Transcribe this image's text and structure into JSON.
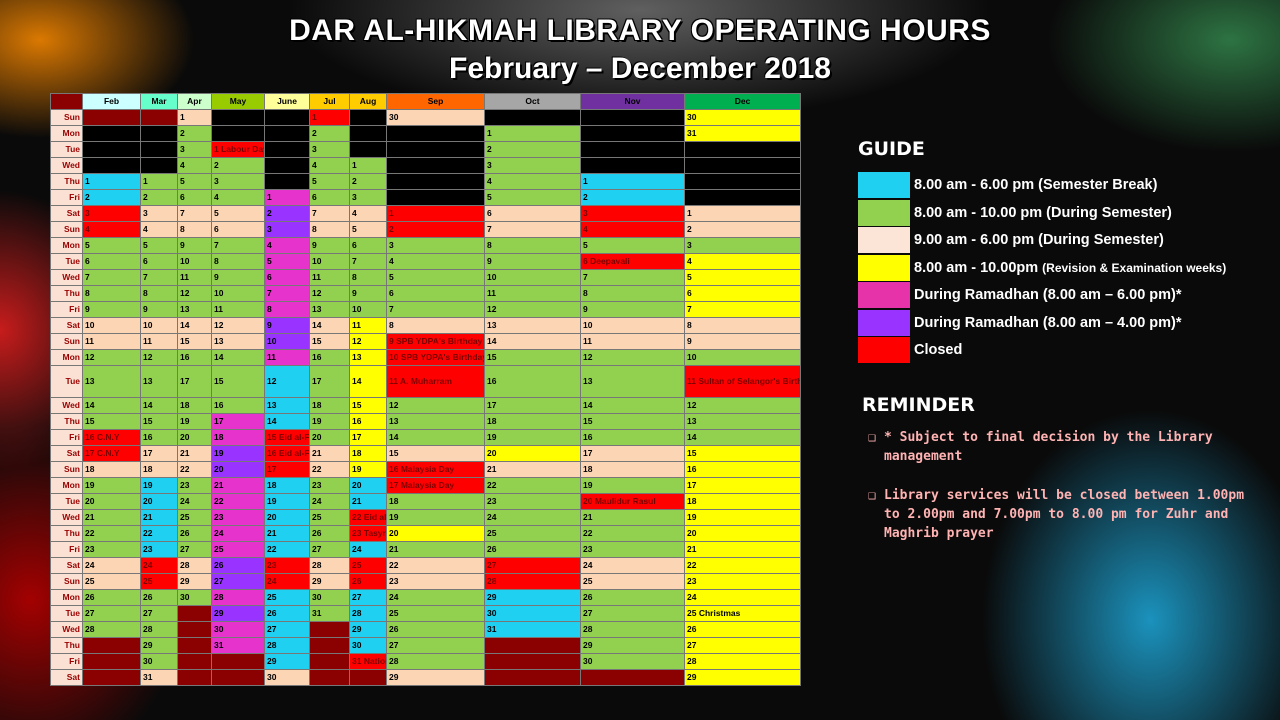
{
  "title": "DAR AL-HIKMAH LIBRARY OPERATING HOURS",
  "subtitle": "February – December 2018",
  "colors": {
    "semester_break": "#1fd0f0",
    "during_semester_long": "#92d050",
    "during_semester_short": "#fcd5b4",
    "revision_exam": "#ffff00",
    "ramadhan_6": "#e633cc",
    "ramadhan_4": "#9933ff",
    "closed": "#ff0000"
  },
  "months": [
    "Feb",
    "Mar",
    "Apr",
    "May",
    "June",
    "Jul",
    "Aug",
    "Sep",
    "Oct",
    "Nov",
    "Dec"
  ],
  "month_colors": [
    "#ccffff",
    "#66ffcc",
    "#ccffcc",
    "#99cc00",
    "#ffff99",
    "#ffcc00",
    "#ffcc00",
    "#ff6600",
    "#a6a6a6",
    "#7030a0",
    "#00b050"
  ],
  "days": [
    "Sun",
    "Mon",
    "Tue",
    "Wed",
    "Thu",
    "Fri",
    "Sat",
    "Sun",
    "Mon",
    "Tue",
    "Wed",
    "Thu",
    "Fri",
    "Sat",
    "Sun",
    "Mon",
    "Tue",
    "Wed",
    "Thu",
    "Fri",
    "Sat",
    "Sun",
    "Mon",
    "Tue",
    "Wed",
    "Thu",
    "Fri",
    "Sat",
    "Sun",
    "Mon",
    "Tue",
    "Wed",
    "Thu",
    "Fri",
    "Sat"
  ],
  "rows": [
    [
      [
        "",
        "dr"
      ],
      [
        "",
        "dr"
      ],
      [
        "1",
        "pe"
      ],
      [
        "",
        "bk"
      ],
      [
        "",
        "bk"
      ],
      [
        "1",
        "re"
      ],
      [
        "",
        "bk"
      ],
      [
        "30",
        "pe"
      ],
      [
        "",
        "bk"
      ],
      [
        "",
        "bk"
      ],
      [
        "30",
        "ye"
      ]
    ],
    [
      [
        "",
        "bk"
      ],
      [
        "",
        "bk"
      ],
      [
        "2",
        "gr"
      ],
      [
        "",
        "bk"
      ],
      [
        "",
        "bk"
      ],
      [
        "2",
        "gr"
      ],
      [
        "",
        "bk"
      ],
      [
        "",
        "bk"
      ],
      [
        "1",
        "gr"
      ],
      [
        "",
        "bk"
      ],
      [
        "31",
        "ye"
      ]
    ],
    [
      [
        "",
        "bk"
      ],
      [
        "",
        "bk"
      ],
      [
        "3",
        "gr"
      ],
      [
        "1 Labour Day",
        "re"
      ],
      [
        "",
        "bk"
      ],
      [
        "3",
        "gr"
      ],
      [
        "",
        "bk"
      ],
      [
        "",
        "bk"
      ],
      [
        "2",
        "gr"
      ],
      [
        "",
        "bk"
      ],
      [
        "",
        "bk"
      ]
    ],
    [
      [
        "",
        "bk"
      ],
      [
        "",
        "bk"
      ],
      [
        "4",
        "gr"
      ],
      [
        "2",
        "gr"
      ],
      [
        "",
        "bk"
      ],
      [
        "4",
        "gr"
      ],
      [
        "1",
        "gr"
      ],
      [
        "",
        "bk"
      ],
      [
        "3",
        "gr"
      ],
      [
        "",
        "bk"
      ],
      [
        "",
        "bk"
      ]
    ],
    [
      [
        "1",
        "cy"
      ],
      [
        "1",
        "gr"
      ],
      [
        "5",
        "gr"
      ],
      [
        "3",
        "gr"
      ],
      [
        "",
        "bk"
      ],
      [
        "5",
        "gr"
      ],
      [
        "2",
        "gr"
      ],
      [
        "",
        "bk"
      ],
      [
        "4",
        "gr"
      ],
      [
        "1",
        "cy"
      ],
      [
        "",
        "bk"
      ]
    ],
    [
      [
        "2",
        "cy"
      ],
      [
        "2",
        "gr"
      ],
      [
        "6",
        "gr"
      ],
      [
        "4",
        "gr"
      ],
      [
        "1",
        "mg"
      ],
      [
        "6",
        "gr"
      ],
      [
        "3",
        "gr"
      ],
      [
        "",
        "bk"
      ],
      [
        "5",
        "gr"
      ],
      [
        "2",
        "cy"
      ],
      [
        "",
        "bk"
      ]
    ],
    [
      [
        "3",
        "re"
      ],
      [
        "3",
        "pe"
      ],
      [
        "7",
        "pe"
      ],
      [
        "5",
        "pe"
      ],
      [
        "2",
        "pu"
      ],
      [
        "7",
        "pe"
      ],
      [
        "4",
        "pe"
      ],
      [
        "1",
        "re"
      ],
      [
        "6",
        "pe"
      ],
      [
        "3",
        "re"
      ],
      [
        "1",
        "pe"
      ]
    ],
    [
      [
        "4",
        "re"
      ],
      [
        "4",
        "pe"
      ],
      [
        "8",
        "pe"
      ],
      [
        "6",
        "pe"
      ],
      [
        "3",
        "pu"
      ],
      [
        "8",
        "pe"
      ],
      [
        "5",
        "pe"
      ],
      [
        "2",
        "re"
      ],
      [
        "7",
        "pe"
      ],
      [
        "4",
        "re"
      ],
      [
        "2",
        "pe"
      ]
    ],
    [
      [
        "5",
        "gr"
      ],
      [
        "5",
        "gr"
      ],
      [
        "9",
        "gr"
      ],
      [
        "7",
        "gr"
      ],
      [
        "4",
        "mg"
      ],
      [
        "9",
        "gr"
      ],
      [
        "6",
        "gr"
      ],
      [
        "3",
        "gr"
      ],
      [
        "8",
        "gr"
      ],
      [
        "5",
        "gr"
      ],
      [
        "3",
        "gr"
      ]
    ],
    [
      [
        "6",
        "gr"
      ],
      [
        "6",
        "gr"
      ],
      [
        "10",
        "gr"
      ],
      [
        "8",
        "gr"
      ],
      [
        "5",
        "mg"
      ],
      [
        "10",
        "gr"
      ],
      [
        "7",
        "gr"
      ],
      [
        "4",
        "gr"
      ],
      [
        "9",
        "gr"
      ],
      [
        "6 Deepavali",
        "re"
      ],
      [
        "4",
        "ye"
      ]
    ],
    [
      [
        "7",
        "gr"
      ],
      [
        "7",
        "gr"
      ],
      [
        "11",
        "gr"
      ],
      [
        "9",
        "gr"
      ],
      [
        "6",
        "mg"
      ],
      [
        "11",
        "gr"
      ],
      [
        "8",
        "gr"
      ],
      [
        "5",
        "gr"
      ],
      [
        "10",
        "gr"
      ],
      [
        "7",
        "gr"
      ],
      [
        "5",
        "ye"
      ]
    ],
    [
      [
        "8",
        "gr"
      ],
      [
        "8",
        "gr"
      ],
      [
        "12",
        "gr"
      ],
      [
        "10",
        "gr"
      ],
      [
        "7",
        "mg"
      ],
      [
        "12",
        "gr"
      ],
      [
        "9",
        "gr"
      ],
      [
        "6",
        "gr"
      ],
      [
        "11",
        "gr"
      ],
      [
        "8",
        "gr"
      ],
      [
        "6",
        "ye"
      ]
    ],
    [
      [
        "9",
        "gr"
      ],
      [
        "9",
        "gr"
      ],
      [
        "13",
        "gr"
      ],
      [
        "11",
        "gr"
      ],
      [
        "8",
        "mg"
      ],
      [
        "13",
        "gr"
      ],
      [
        "10",
        "gr"
      ],
      [
        "7",
        "gr"
      ],
      [
        "12",
        "gr"
      ],
      [
        "9",
        "gr"
      ],
      [
        "7",
        "ye"
      ]
    ],
    [
      [
        "10",
        "pe"
      ],
      [
        "10",
        "pe"
      ],
      [
        "14",
        "pe"
      ],
      [
        "12",
        "pe"
      ],
      [
        "9",
        "pu"
      ],
      [
        "14",
        "pe"
      ],
      [
        "11",
        "ye"
      ],
      [
        "8",
        "pe"
      ],
      [
        "13",
        "pe"
      ],
      [
        "10",
        "pe"
      ],
      [
        "8",
        "pe"
      ]
    ],
    [
      [
        "11",
        "pe"
      ],
      [
        "11",
        "pe"
      ],
      [
        "15",
        "pe"
      ],
      [
        "13",
        "pe"
      ],
      [
        "10",
        "pu"
      ],
      [
        "15",
        "pe"
      ],
      [
        "12",
        "ye"
      ],
      [
        "9 SPB YDPA's Birthday",
        "re"
      ],
      [
        "14",
        "pe"
      ],
      [
        "11",
        "pe"
      ],
      [
        "9",
        "pe"
      ]
    ],
    [
      [
        "12",
        "gr"
      ],
      [
        "12",
        "gr"
      ],
      [
        "16",
        "gr"
      ],
      [
        "14",
        "gr"
      ],
      [
        "11",
        "mg"
      ],
      [
        "16",
        "gr"
      ],
      [
        "13",
        "ye"
      ],
      [
        "10 SPB YDPA's Birthday",
        "re"
      ],
      [
        "15",
        "gr"
      ],
      [
        "12",
        "gr"
      ],
      [
        "10",
        "gr"
      ]
    ],
    [
      [
        "13",
        "gr"
      ],
      [
        "13",
        "gr"
      ],
      [
        "17",
        "gr"
      ],
      [
        "15",
        "gr"
      ],
      [
        "12",
        "cy"
      ],
      [
        "17",
        "gr"
      ],
      [
        "14",
        "ye"
      ],
      [
        "11 A. Muharram",
        "re"
      ],
      [
        "16",
        "gr"
      ],
      [
        "13",
        "gr"
      ],
      [
        "11 Sultan of Selangor's Birthday",
        "re"
      ]
    ],
    [
      [
        "14",
        "gr"
      ],
      [
        "14",
        "gr"
      ],
      [
        "18",
        "gr"
      ],
      [
        "16",
        "gr"
      ],
      [
        "13",
        "cy"
      ],
      [
        "18",
        "gr"
      ],
      [
        "15",
        "ye"
      ],
      [
        "12",
        "gr"
      ],
      [
        "17",
        "gr"
      ],
      [
        "14",
        "gr"
      ],
      [
        "12",
        "gr"
      ]
    ],
    [
      [
        "15",
        "gr"
      ],
      [
        "15",
        "gr"
      ],
      [
        "19",
        "gr"
      ],
      [
        "17",
        "mg"
      ],
      [
        "14",
        "cy"
      ],
      [
        "19",
        "gr"
      ],
      [
        "16",
        "ye"
      ],
      [
        "13",
        "gr"
      ],
      [
        "18",
        "gr"
      ],
      [
        "15",
        "gr"
      ],
      [
        "13",
        "gr"
      ]
    ],
    [
      [
        "16 C.N.Y",
        "re"
      ],
      [
        "16",
        "gr"
      ],
      [
        "20",
        "gr"
      ],
      [
        "18",
        "mg"
      ],
      [
        "15 Eid al-Fitr",
        "re"
      ],
      [
        "20",
        "gr"
      ],
      [
        "17",
        "ye"
      ],
      [
        "14",
        "gr"
      ],
      [
        "19",
        "gr"
      ],
      [
        "16",
        "gr"
      ],
      [
        "14",
        "gr"
      ]
    ],
    [
      [
        "17 C.N.Y",
        "re"
      ],
      [
        "17",
        "pe"
      ],
      [
        "21",
        "pe"
      ],
      [
        "19",
        "pu"
      ],
      [
        "16 Eid al-Fitr",
        "re"
      ],
      [
        "21",
        "pe"
      ],
      [
        "18",
        "ye"
      ],
      [
        "15",
        "pe"
      ],
      [
        "20",
        "ye"
      ],
      [
        "17",
        "pe"
      ],
      [
        "15",
        "ye"
      ]
    ],
    [
      [
        "18",
        "pe"
      ],
      [
        "18",
        "pe"
      ],
      [
        "22",
        "pe"
      ],
      [
        "20",
        "pu"
      ],
      [
        "17",
        "re"
      ],
      [
        "22",
        "pe"
      ],
      [
        "19",
        "ye"
      ],
      [
        "16 Malaysia Day",
        "re"
      ],
      [
        "21",
        "pe"
      ],
      [
        "18",
        "pe"
      ],
      [
        "16",
        "ye"
      ]
    ],
    [
      [
        "19",
        "gr"
      ],
      [
        "19",
        "cy"
      ],
      [
        "23",
        "gr"
      ],
      [
        "21",
        "mg"
      ],
      [
        "18",
        "cy"
      ],
      [
        "23",
        "gr"
      ],
      [
        "20",
        "cy"
      ],
      [
        "17 Malaysia Day",
        "re"
      ],
      [
        "22",
        "gr"
      ],
      [
        "19",
        "gr"
      ],
      [
        "17",
        "ye"
      ]
    ],
    [
      [
        "20",
        "gr"
      ],
      [
        "20",
        "cy"
      ],
      [
        "24",
        "gr"
      ],
      [
        "22",
        "mg"
      ],
      [
        "19",
        "cy"
      ],
      [
        "24",
        "gr"
      ],
      [
        "21",
        "cy"
      ],
      [
        "18",
        "gr"
      ],
      [
        "23",
        "gr"
      ],
      [
        "20 Maulidur Rasul",
        "re"
      ],
      [
        "18",
        "ye"
      ]
    ],
    [
      [
        "21",
        "gr"
      ],
      [
        "21",
        "cy"
      ],
      [
        "25",
        "gr"
      ],
      [
        "23",
        "mg"
      ],
      [
        "20",
        "cy"
      ],
      [
        "25",
        "gr"
      ],
      [
        "22 Eid al-Adha",
        "re"
      ],
      [
        "19",
        "gr"
      ],
      [
        "24",
        "gr"
      ],
      [
        "21",
        "gr"
      ],
      [
        "19",
        "ye"
      ]
    ],
    [
      [
        "22",
        "gr"
      ],
      [
        "22",
        "cy"
      ],
      [
        "26",
        "gr"
      ],
      [
        "24",
        "mg"
      ],
      [
        "21",
        "cy"
      ],
      [
        "26",
        "gr"
      ],
      [
        "23 Tasyrik",
        "re"
      ],
      [
        "20",
        "ye"
      ],
      [
        "25",
        "gr"
      ],
      [
        "22",
        "gr"
      ],
      [
        "20",
        "ye"
      ]
    ],
    [
      [
        "23",
        "gr"
      ],
      [
        "23",
        "cy"
      ],
      [
        "27",
        "gr"
      ],
      [
        "25",
        "mg"
      ],
      [
        "22",
        "cy"
      ],
      [
        "27",
        "gr"
      ],
      [
        "24",
        "cy"
      ],
      [
        "21",
        "gr"
      ],
      [
        "26",
        "gr"
      ],
      [
        "23",
        "gr"
      ],
      [
        "21",
        "ye"
      ]
    ],
    [
      [
        "24",
        "pe"
      ],
      [
        "24",
        "re"
      ],
      [
        "28",
        "pe"
      ],
      [
        "26",
        "pu"
      ],
      [
        "23",
        "re"
      ],
      [
        "28",
        "pe"
      ],
      [
        "25",
        "re"
      ],
      [
        "22",
        "pe"
      ],
      [
        "27",
        "re"
      ],
      [
        "24",
        "pe"
      ],
      [
        "22",
        "ye"
      ]
    ],
    [
      [
        "25",
        "pe"
      ],
      [
        "25",
        "re"
      ],
      [
        "29",
        "pe"
      ],
      [
        "27",
        "pu"
      ],
      [
        "24",
        "re"
      ],
      [
        "29",
        "pe"
      ],
      [
        "26",
        "re"
      ],
      [
        "23",
        "pe"
      ],
      [
        "28",
        "re"
      ],
      [
        "25",
        "pe"
      ],
      [
        "23",
        "ye"
      ]
    ],
    [
      [
        "26",
        "gr"
      ],
      [
        "26",
        "gr"
      ],
      [
        "30",
        "gr"
      ],
      [
        "28",
        "mg"
      ],
      [
        "25",
        "cy"
      ],
      [
        "30",
        "gr"
      ],
      [
        "27",
        "cy"
      ],
      [
        "24",
        "gr"
      ],
      [
        "29",
        "cy"
      ],
      [
        "26",
        "gr"
      ],
      [
        "24",
        "ye"
      ]
    ],
    [
      [
        "27",
        "gr"
      ],
      [
        "27",
        "gr"
      ],
      [
        "",
        "dr"
      ],
      [
        "29",
        "pu"
      ],
      [
        "26",
        "cy"
      ],
      [
        "31",
        "gr"
      ],
      [
        "28",
        "cy"
      ],
      [
        "25",
        "gr"
      ],
      [
        "30",
        "cy"
      ],
      [
        "27",
        "gr"
      ],
      [
        "25 Christmas",
        "ye"
      ]
    ],
    [
      [
        "28",
        "gr"
      ],
      [
        "28",
        "gr"
      ],
      [
        "",
        "dr"
      ],
      [
        "30",
        "mg"
      ],
      [
        "27",
        "cy"
      ],
      [
        "",
        "dr"
      ],
      [
        "29",
        "cy"
      ],
      [
        "26",
        "gr"
      ],
      [
        "31",
        "cy"
      ],
      [
        "28",
        "gr"
      ],
      [
        "26",
        "ye"
      ]
    ],
    [
      [
        "",
        "dr"
      ],
      [
        "29",
        "gr"
      ],
      [
        "",
        "dr"
      ],
      [
        "31",
        "mg"
      ],
      [
        "28",
        "cy"
      ],
      [
        "",
        "dr"
      ],
      [
        "30",
        "cy"
      ],
      [
        "27",
        "gr"
      ],
      [
        "",
        "dr"
      ],
      [
        "29",
        "gr"
      ],
      [
        "27",
        "ye"
      ]
    ],
    [
      [
        "",
        "dr"
      ],
      [
        "30",
        "gr"
      ],
      [
        "",
        "dr"
      ],
      [
        "",
        "dr"
      ],
      [
        "29",
        "cy"
      ],
      [
        "",
        "dr"
      ],
      [
        "31 National Day",
        "re"
      ],
      [
        "28",
        "gr"
      ],
      [
        "",
        "dr"
      ],
      [
        "30",
        "gr"
      ],
      [
        "28",
        "ye"
      ]
    ],
    [
      [
        "",
        "dr"
      ],
      [
        "31",
        "pe"
      ],
      [
        "",
        "dr"
      ],
      [
        "",
        "dr"
      ],
      [
        "30",
        "pe"
      ],
      [
        "",
        "dr"
      ],
      [
        "",
        "dr"
      ],
      [
        "29",
        "pe"
      ],
      [
        "",
        "dr"
      ],
      [
        "",
        "dr"
      ],
      [
        "29",
        "ye"
      ]
    ]
  ],
  "guide": {
    "heading": "GUIDE",
    "items": [
      {
        "color": "#1fd0f0",
        "label": "8.00 am - 6.00 pm (Semester Break)"
      },
      {
        "color": "#92d050",
        "label": "8.00 am - 10.00 pm (During Semester)"
      },
      {
        "color": "#fce4d6",
        "label": "9.00 am - 6.00 pm (During Semester)"
      },
      {
        "color": "#ffff00",
        "label": "8.00 am - 10.00pm",
        "label_small": "(Revision & Examination weeks)"
      },
      {
        "color": "#e633aa",
        "label": "During Ramadhan (8.00 am – 6.00 pm)*"
      },
      {
        "color": "#9933ff",
        "label": "During Ramadhan (8.00 am – 4.00 pm)*"
      },
      {
        "color": "#ff0000",
        "label": "Closed"
      }
    ]
  },
  "reminder": {
    "heading": "REMINDER",
    "notes": [
      "* Subject to final decision by the Library management",
      "Library services will be closed between 1.00pm to 2.00pm and 7.00pm to 8.00 pm for Zuhr and Maghrib prayer"
    ]
  }
}
